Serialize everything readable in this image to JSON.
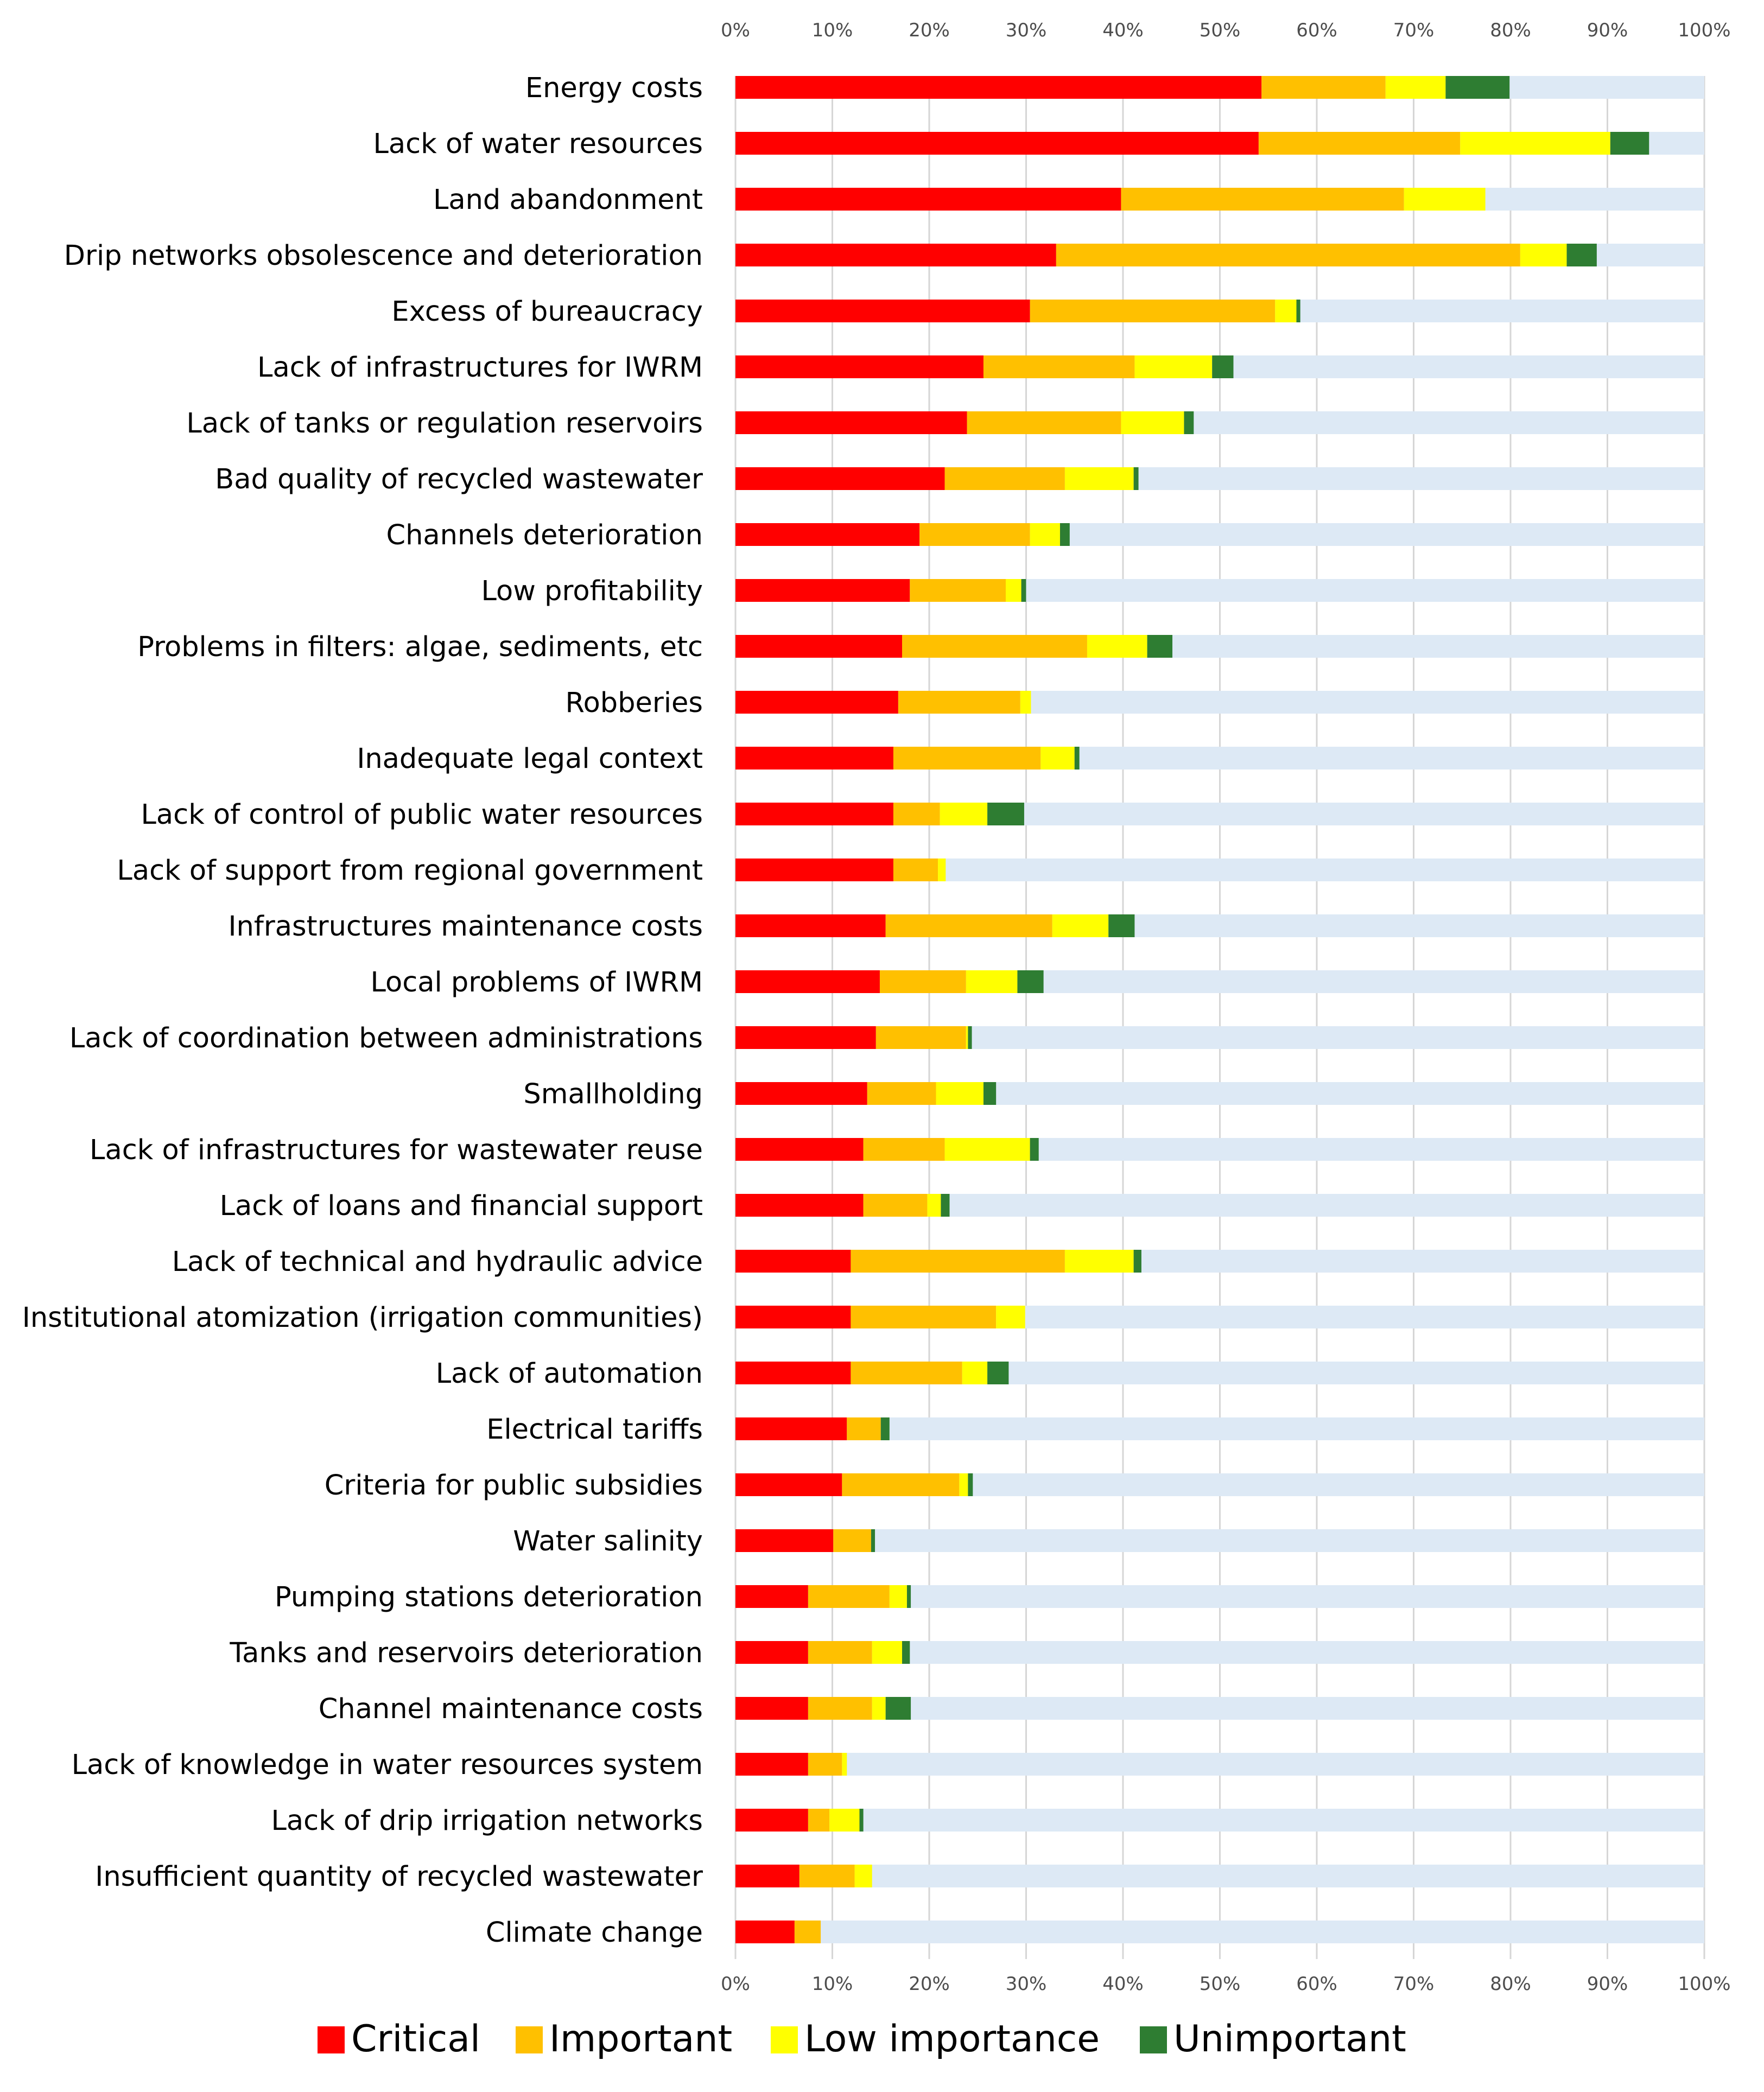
{
  "chart_data": {
    "type": "bar",
    "orientation": "horizontal",
    "stacked": true,
    "percent": true,
    "title": "",
    "xlabel": "",
    "ylabel": "",
    "xlim": [
      0,
      100
    ],
    "grid": true,
    "legend_position": "bottom",
    "x_ticks": [
      "0%",
      "10%",
      "20%",
      "30%",
      "40%",
      "50%",
      "60%",
      "70%",
      "80%",
      "90%",
      "100%"
    ],
    "categories": [
      "Energy costs",
      "Lack of water resources",
      "Land abandonment",
      "Drip networks obsolescence and deterioration",
      "Excess of bureaucracy",
      "Lack of  infrastructures for  IWRM",
      "Lack of tanks or regulation reservoirs",
      "Bad quality of recycled wastewater",
      "Channels deterioration",
      "Low profitability",
      "Problems in filters: algae, sediments, etc",
      "Robberies",
      "Inadequate legal context",
      "Lack of control of public water resources",
      "Lack of support from regional government",
      "Infrastructures maintenance costs",
      "Local problems of IWRM",
      "Lack of coordination between administrations",
      "Smallholding",
      "Lack of infrastructures for wastewater reuse",
      "Lack of loans and financial support",
      "Lack of technical and hydraulic  advice",
      "Institutional atomization (irrigation communities)",
      "Lack of automation",
      "Electrical tariffs",
      "Criteria for public subsidies",
      "Water salinity",
      "Pumping stations deterioration",
      "Tanks and reservoirs deterioration",
      "Channel maintenance costs",
      "Lack of knowledge in water resources system",
      "Lack of drip irrigation networks",
      "Insufficient quantity of recycled wastewater",
      "Climate change"
    ],
    "series": [
      {
        "name": "Critical",
        "color": "#ff0000",
        "values": [
          54.3,
          54.0,
          39.8,
          33.1,
          30.4,
          25.6,
          23.9,
          21.6,
          19.0,
          18.0,
          17.2,
          16.8,
          16.3,
          16.3,
          16.3,
          15.5,
          14.9,
          14.5,
          13.6,
          13.2,
          13.2,
          11.9,
          11.9,
          11.9,
          11.5,
          11.0,
          10.1,
          7.5,
          7.5,
          7.5,
          7.5,
          7.5,
          6.6,
          6.1
        ]
      },
      {
        "name": "Important",
        "color": "#ffc000",
        "values": [
          12.8,
          20.8,
          29.2,
          47.9,
          25.3,
          15.6,
          15.9,
          12.4,
          11.4,
          9.9,
          19.1,
          12.6,
          15.2,
          4.8,
          4.6,
          17.2,
          8.9,
          9.3,
          7.1,
          8.4,
          6.6,
          22.1,
          15.0,
          11.5,
          3.5,
          12.1,
          3.9,
          8.4,
          6.6,
          6.6,
          3.5,
          2.2,
          5.7,
          2.7
        ]
      },
      {
        "name": "Low importance",
        "color": "#ffff00",
        "values": [
          6.2,
          15.5,
          8.4,
          4.8,
          2.2,
          8.0,
          6.5,
          7.1,
          3.1,
          1.6,
          6.2,
          1.1,
          3.5,
          4.9,
          0.8,
          5.8,
          5.3,
          0.2,
          4.9,
          8.8,
          1.4,
          7.1,
          3.0,
          2.6,
          0.0,
          0.9,
          0.0,
          1.8,
          3.1,
          1.4,
          0.5,
          3.1,
          1.8,
          0.0
        ]
      },
      {
        "name": "Unimportant",
        "color": "#2e7d32",
        "values": [
          6.6,
          4.0,
          0.0,
          3.1,
          0.4,
          2.2,
          1.0,
          0.5,
          1.0,
          0.5,
          2.6,
          0.0,
          0.5,
          3.8,
          0.0,
          2.7,
          2.7,
          0.4,
          1.3,
          0.9,
          0.9,
          0.8,
          0.0,
          2.2,
          0.9,
          0.5,
          0.4,
          0.4,
          0.8,
          2.6,
          0.0,
          0.4,
          0.0,
          0.0
        ]
      },
      {
        "name": "Remainder",
        "color": "#dde9f5",
        "values": "fill to 100%"
      }
    ],
    "legend": [
      {
        "label": "Critical",
        "color": "#ff0000"
      },
      {
        "label": "Important",
        "color": "#ffc000"
      },
      {
        "label": "Low importance",
        "color": "#ffff00"
      },
      {
        "label": "Unimportant",
        "color": "#2e7d32"
      }
    ],
    "background_bar_color": "#dde9f5"
  }
}
